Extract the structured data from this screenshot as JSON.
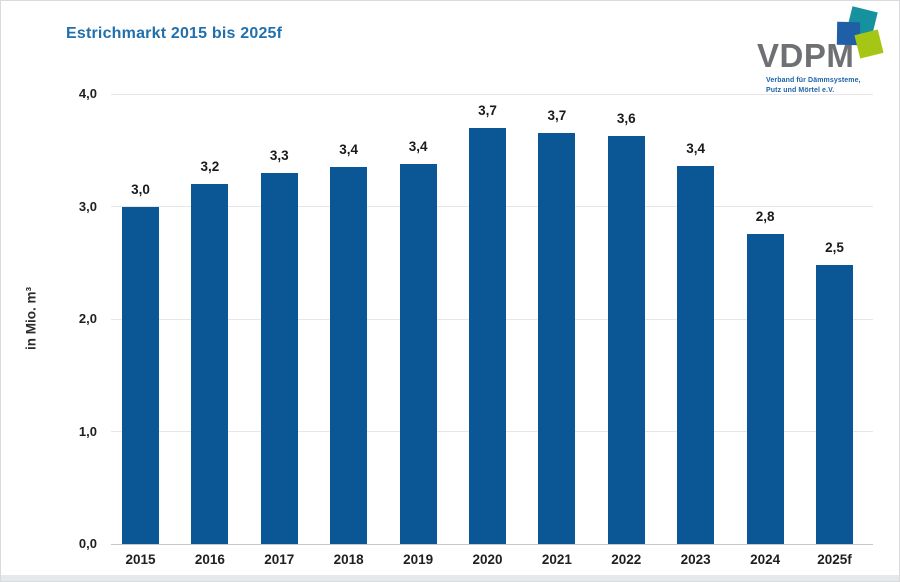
{
  "title": "Estrichmarkt 2015 bis 2025f",
  "logo": {
    "name": "VDPM",
    "tagline_line1": "Verband für Dämmsysteme,",
    "tagline_line2": "Putz und Mörtel e.V.",
    "colors": {
      "wordmark_gray": "#6e7073",
      "tagline_blue": "#1d63a8",
      "blue_square": "#1e5fa6",
      "teal_square": "#16919e",
      "lime_square": "#a5c614"
    }
  },
  "chart_data": {
    "type": "bar",
    "title": "Estrichmarkt 2015 bis 2025f",
    "categories": [
      "2015",
      "2016",
      "2017",
      "2018",
      "2019",
      "2020",
      "2021",
      "2022",
      "2023",
      "2024",
      "2025f"
    ],
    "values": [
      3.0,
      3.2,
      3.3,
      3.4,
      3.4,
      3.7,
      3.7,
      3.6,
      3.4,
      2.8,
      2.5
    ],
    "value_labels": [
      "3,0",
      "3,2",
      "3,3",
      "3,4",
      "3,4",
      "3,7",
      "3,7",
      "3,6",
      "3,4",
      "2,8",
      "2,5"
    ],
    "bar_heights_precise": [
      3.0,
      3.2,
      3.3,
      3.35,
      3.38,
      3.7,
      3.65,
      3.63,
      3.36,
      2.76,
      2.48
    ],
    "xlabel": "",
    "ylabel": "in Mio. m³",
    "ylim": [
      0,
      4
    ],
    "ytick_values": [
      0,
      1,
      2,
      3,
      4
    ],
    "ytick_labels": [
      "0,0",
      "1,0",
      "2,0",
      "3,0",
      "4,0"
    ],
    "grid": "horizontal",
    "legend": "none",
    "bar_color": "#0b5795",
    "title_color": "#2170ad"
  }
}
